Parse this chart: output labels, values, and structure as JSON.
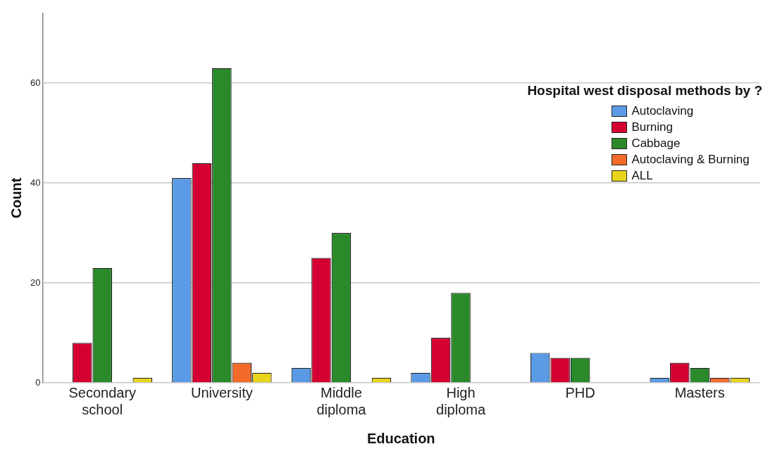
{
  "chart_data": {
    "type": "bar",
    "xlabel": "Education",
    "ylabel": "Count",
    "legend_title": "Hospital west disposal methods by ?",
    "categories": [
      "Secondary school",
      "University",
      "Middle diploma",
      "High diploma",
      "PHD",
      "Masters"
    ],
    "series": [
      {
        "name": "Autoclaving",
        "color": "#5b9be6",
        "values": [
          null,
          41,
          3,
          2,
          6,
          1
        ]
      },
      {
        "name": "Burning",
        "color": "#d50032",
        "values": [
          8,
          44,
          25,
          9,
          5,
          4
        ]
      },
      {
        "name": "Cabbage",
        "color": "#2a8a2a",
        "values": [
          23,
          63,
          30,
          18,
          5,
          3
        ]
      },
      {
        "name": "Autoclaving & Burning",
        "color": "#f26b2a",
        "values": [
          null,
          4,
          null,
          null,
          null,
          1
        ]
      },
      {
        "name": "ALL",
        "color": "#e8d41a",
        "values": [
          1,
          2,
          1,
          null,
          null,
          1
        ]
      }
    ],
    "ylim": [
      0,
      74
    ],
    "yticks": [
      0,
      20,
      40,
      60
    ],
    "grid": "y",
    "legend": "top right"
  }
}
